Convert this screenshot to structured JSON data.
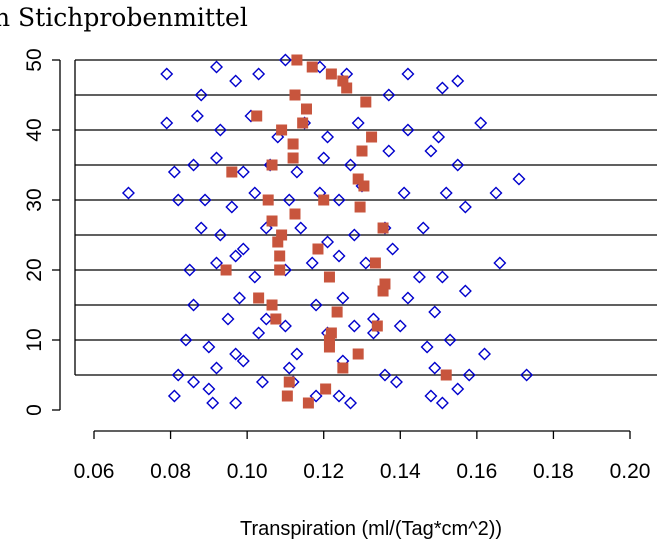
{
  "chart_data": {
    "type": "scatter",
    "title": "n Stichprobenmittel",
    "xlabel": "Transpiration (ml/(Tag*cm^2))",
    "ylabel": "",
    "xlim": [
      0.06,
      0.2
    ],
    "ylim": [
      0,
      50
    ],
    "x_ticks": [
      "0.06",
      "0.08",
      "0.10",
      "0.12",
      "0.14",
      "0.16",
      "0.18",
      "0.20"
    ],
    "y_ticks": [
      "0",
      "10",
      "20",
      "30",
      "40",
      "50"
    ],
    "reference_lines_y": [
      5,
      10,
      15,
      20,
      25,
      30,
      35,
      40,
      45,
      50
    ],
    "colors": {
      "samples": "#0000cc",
      "means": "#c8553d",
      "lines": "#000000"
    },
    "series": [
      {
        "marker": "open-diamond",
        "points": [
          [
            0.081,
            2
          ],
          [
            0.086,
            4
          ],
          [
            0.09,
            3
          ],
          [
            0.091,
            1
          ],
          [
            0.097,
            1
          ],
          [
            0.104,
            4
          ],
          [
            0.112,
            4
          ],
          [
            0.118,
            2
          ],
          [
            0.124,
            2
          ],
          [
            0.127,
            1
          ],
          [
            0.148,
            2
          ],
          [
            0.151,
            1
          ],
          [
            0.155,
            3
          ],
          [
            0.082,
            5
          ],
          [
            0.092,
            6
          ],
          [
            0.099,
            7
          ],
          [
            0.111,
            6
          ],
          [
            0.125,
            7
          ],
          [
            0.136,
            5
          ],
          [
            0.139,
            4
          ],
          [
            0.149,
            6
          ],
          [
            0.158,
            5
          ],
          [
            0.173,
            5
          ],
          [
            0.084,
            10
          ],
          [
            0.09,
            9
          ],
          [
            0.097,
            8
          ],
          [
            0.103,
            11
          ],
          [
            0.113,
            8
          ],
          [
            0.121,
            11
          ],
          [
            0.128,
            12
          ],
          [
            0.133,
            11
          ],
          [
            0.14,
            12
          ],
          [
            0.147,
            9
          ],
          [
            0.153,
            10
          ],
          [
            0.162,
            8
          ],
          [
            0.086,
            15
          ],
          [
            0.095,
            13
          ],
          [
            0.098,
            16
          ],
          [
            0.105,
            13
          ],
          [
            0.11,
            12
          ],
          [
            0.118,
            15
          ],
          [
            0.125,
            16
          ],
          [
            0.133,
            13
          ],
          [
            0.142,
            16
          ],
          [
            0.149,
            14
          ],
          [
            0.157,
            17
          ],
          [
            0.085,
            20
          ],
          [
            0.092,
            21
          ],
          [
            0.097,
            22
          ],
          [
            0.102,
            19
          ],
          [
            0.11,
            20
          ],
          [
            0.117,
            21
          ],
          [
            0.124,
            22
          ],
          [
            0.131,
            21
          ],
          [
            0.138,
            23
          ],
          [
            0.145,
            19
          ],
          [
            0.151,
            19
          ],
          [
            0.166,
            21
          ],
          [
            0.088,
            26
          ],
          [
            0.093,
            25
          ],
          [
            0.099,
            23
          ],
          [
            0.105,
            26
          ],
          [
            0.114,
            26
          ],
          [
            0.121,
            24
          ],
          [
            0.128,
            25
          ],
          [
            0.136,
            26
          ],
          [
            0.146,
            26
          ],
          [
            0.157,
            29
          ],
          [
            0.069,
            31
          ],
          [
            0.082,
            30
          ],
          [
            0.089,
            30
          ],
          [
            0.096,
            29
          ],
          [
            0.102,
            31
          ],
          [
            0.111,
            30
          ],
          [
            0.119,
            31
          ],
          [
            0.124,
            30
          ],
          [
            0.13,
            32
          ],
          [
            0.141,
            31
          ],
          [
            0.152,
            31
          ],
          [
            0.165,
            31
          ],
          [
            0.171,
            33
          ],
          [
            0.081,
            34
          ],
          [
            0.086,
            35
          ],
          [
            0.092,
            36
          ],
          [
            0.099,
            34
          ],
          [
            0.106,
            35
          ],
          [
            0.113,
            34
          ],
          [
            0.12,
            36
          ],
          [
            0.127,
            35
          ],
          [
            0.137,
            37
          ],
          [
            0.148,
            37
          ],
          [
            0.155,
            35
          ],
          [
            0.079,
            41
          ],
          [
            0.087,
            42
          ],
          [
            0.093,
            40
          ],
          [
            0.101,
            42
          ],
          [
            0.108,
            39
          ],
          [
            0.115,
            41
          ],
          [
            0.121,
            39
          ],
          [
            0.129,
            41
          ],
          [
            0.142,
            40
          ],
          [
            0.15,
            39
          ],
          [
            0.161,
            41
          ],
          [
            0.079,
            48
          ],
          [
            0.088,
            45
          ],
          [
            0.092,
            49
          ],
          [
            0.097,
            47
          ],
          [
            0.103,
            48
          ],
          [
            0.11,
            50
          ],
          [
            0.119,
            49
          ],
          [
            0.126,
            48
          ],
          [
            0.137,
            45
          ],
          [
            0.142,
            48
          ],
          [
            0.151,
            46
          ],
          [
            0.155,
            47
          ]
        ]
      },
      {
        "marker": "filled-square",
        "points": [
          [
            0.1105,
            2
          ],
          [
            0.111,
            4
          ],
          [
            0.116,
            1
          ],
          [
            0.1205,
            3
          ],
          [
            0.125,
            6
          ],
          [
            0.129,
            8
          ],
          [
            0.134,
            12
          ],
          [
            0.1355,
            17
          ],
          [
            0.136,
            18
          ],
          [
            0.1335,
            21
          ],
          [
            0.1355,
            26
          ],
          [
            0.1295,
            29
          ],
          [
            0.1305,
            32
          ],
          [
            0.129,
            33
          ],
          [
            0.13,
            37
          ],
          [
            0.1325,
            39
          ],
          [
            0.131,
            44
          ],
          [
            0.126,
            46
          ],
          [
            0.125,
            47
          ],
          [
            0.122,
            48
          ],
          [
            0.117,
            49
          ],
          [
            0.113,
            50
          ],
          [
            0.109,
            40
          ],
          [
            0.1145,
            41
          ],
          [
            0.112,
            36
          ],
          [
            0.112,
            38
          ],
          [
            0.1155,
            43
          ],
          [
            0.1125,
            45
          ],
          [
            0.1065,
            35
          ],
          [
            0.1025,
            42
          ],
          [
            0.096,
            34
          ],
          [
            0.1055,
            30
          ],
          [
            0.1125,
            28
          ],
          [
            0.1065,
            27
          ],
          [
            0.109,
            25
          ],
          [
            0.108,
            24
          ],
          [
            0.1085,
            22
          ],
          [
            0.1185,
            23
          ],
          [
            0.1215,
            19
          ],
          [
            0.1085,
            20
          ],
          [
            0.0945,
            20
          ],
          [
            0.103,
            16
          ],
          [
            0.1065,
            15
          ],
          [
            0.1075,
            13
          ],
          [
            0.1235,
            14
          ],
          [
            0.122,
            11
          ],
          [
            0.1215,
            10
          ],
          [
            0.1215,
            9
          ],
          [
            0.12,
            30
          ],
          [
            0.152,
            5
          ]
        ]
      }
    ]
  }
}
